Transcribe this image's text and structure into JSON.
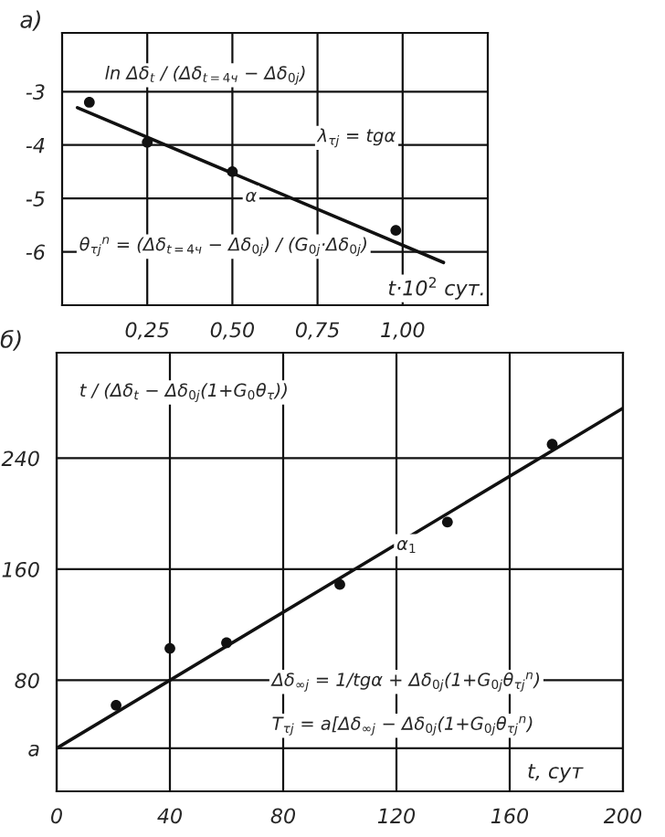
{
  "chart_data": [
    {
      "type": "scatter",
      "title": "а)",
      "xlabel": "t·10$^{2}$ сут.",
      "marker": "circle",
      "series": [
        {
          "color": "#111111",
          "x": [
            0.08,
            0.25,
            0.5,
            0.98
          ],
          "values": [
            -3.2,
            -3.95,
            -4.5,
            -5.6
          ]
        },
        {
          "type": "line",
          "color": "#111111",
          "marker": "none",
          "x": [
            0.045,
            1.12
          ],
          "values": [
            -3.3,
            -6.2
          ]
        }
      ],
      "xlim": [
        0,
        1.25
      ],
      "ylim": [
        -7,
        -1.9
      ],
      "xticks": [
        {
          "value": 0.25,
          "label": "0,25"
        },
        {
          "value": 0.5,
          "label": "0,50"
        },
        {
          "value": 0.75,
          "label": "0,75"
        },
        {
          "value": 1.0,
          "label": "1,00"
        }
      ],
      "yticks": [
        {
          "value": -3,
          "label": "-3"
        },
        {
          "value": -4,
          "label": "-4"
        },
        {
          "value": -5,
          "label": "-5"
        },
        {
          "value": -6,
          "label": "-6"
        }
      ],
      "grid": true,
      "annotations": [
        "ln Δδ$_{t}$ / (Δδ$_{t=4ч}$ − Δδ$_{0j}$)",
        "λ$_{τj}$ = tgα",
        "α",
        "θ$_{τj}$$^{n}$ = (Δδ$_{t=4ч}$ − Δδ$_{0j}$) / (G$_{0j}$·Δδ$_{0j}$)"
      ]
    },
    {
      "type": "scatter",
      "title": "б)",
      "xlabel": "t, сут",
      "series": [
        {
          "color": "#111111",
          "x": [
            21,
            40,
            60,
            100,
            138,
            175
          ],
          "values": [
            62,
            103,
            107,
            149,
            194,
            250
          ]
        },
        {
          "type": "line",
          "color": "#111111",
          "marker": "none",
          "x": [
            0,
            200
          ],
          "values": [
            31,
            276
          ]
        }
      ],
      "marker": "circle",
      "xlim": [
        0,
        200
      ],
      "ylim": [
        0,
        316
      ],
      "xticks": [
        0,
        40,
        80,
        120,
        160,
        200
      ],
      "yticks": [
        {
          "value": 31,
          "label": "a"
        },
        80,
        160,
        240
      ],
      "grid": true,
      "annotations": [
        "t / (Δδ$_{t}$ − Δδ$_{0j}$(1+G$_{0}$θ$_{τ}$))",
        "α$_{1}$",
        "Δδ$_{∞j}$ = 1/tgα + Δδ$_{0j}$(1+G$_{0j}$θ$_{τj}$$^{n}$)",
        "T$_{τj}$ = a[Δδ$_{∞j}$ − Δδ$_{0j}$(1+G$_{0j}$θ$_{τj}$$^{n}$)"
      ]
    }
  ]
}
